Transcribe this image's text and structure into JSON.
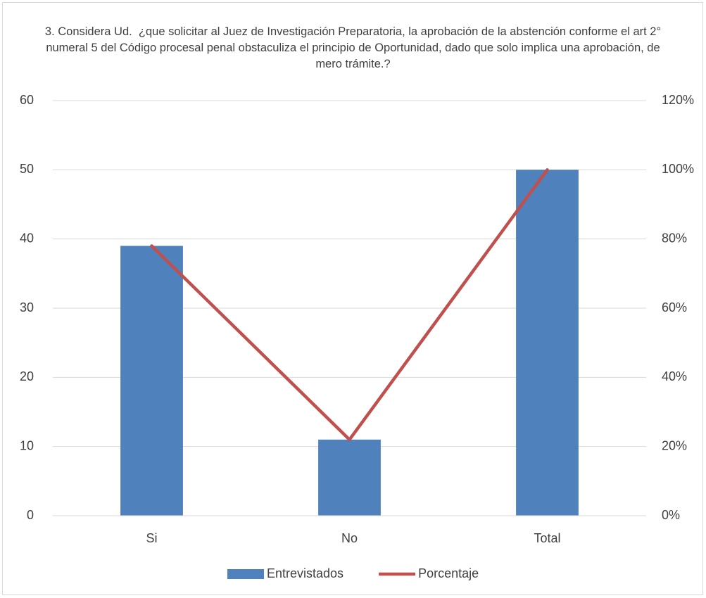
{
  "chart_data": {
    "type": "bar",
    "title": "3. Considera Ud.  ¿que solicitar al Juez de Investigación Preparatoria, la aprobación de la abstención conforme el art 2° numeral 5 del Código procesal penal obstaculiza el principio de Oportunidad, dado que solo implica una aprobación, de mero trámite.?",
    "categories": [
      "Si",
      "No",
      "Total"
    ],
    "series": [
      {
        "name": "Entrevistados",
        "color": "#4f81bd",
        "values": [
          39,
          11,
          50
        ]
      },
      {
        "name": "Porcentaje",
        "color": "#c0504d",
        "type": "line",
        "axis": "y2",
        "values": [
          78,
          22,
          100
        ]
      }
    ],
    "ylim": [
      0,
      60
    ],
    "yticks": [
      0,
      10,
      20,
      30,
      40,
      50,
      60
    ],
    "y2lim": [
      0,
      120
    ],
    "y2ticks": [
      {
        "value": 0,
        "label": "0%"
      },
      {
        "value": 20,
        "label": "20%"
      },
      {
        "value": 40,
        "label": "40%"
      },
      {
        "value": 60,
        "label": "60%"
      },
      {
        "value": 80,
        "label": "80%"
      },
      {
        "value": 100,
        "label": "100%"
      },
      {
        "value": 120,
        "label": "120%"
      }
    ],
    "grid": true,
    "legend": "bottom"
  }
}
